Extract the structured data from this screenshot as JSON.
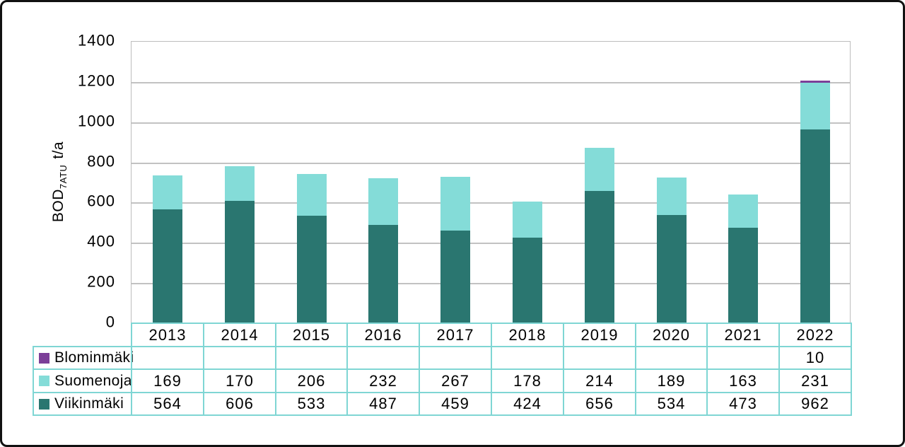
{
  "chart_data": {
    "type": "bar",
    "stacked": true,
    "ylabel_main": "BOD",
    "ylabel_sub": "7ATU",
    "ylabel_unit": "t/a",
    "ylim": [
      0,
      1400
    ],
    "yticks": [
      0,
      200,
      400,
      600,
      800,
      1000,
      1200,
      1400
    ],
    "grid": true,
    "legend_position": "table-left",
    "categories": [
      "2013",
      "2014",
      "2015",
      "2016",
      "2017",
      "2018",
      "2019",
      "2020",
      "2021",
      "2022"
    ],
    "series": [
      {
        "name": "Blominmäki",
        "color": "#7C3F98",
        "values": [
          null,
          null,
          null,
          null,
          null,
          null,
          null,
          null,
          null,
          10
        ]
      },
      {
        "name": "Suomenoja",
        "color": "#84DCD8",
        "values": [
          169,
          170,
          206,
          232,
          267,
          178,
          214,
          189,
          163,
          231
        ]
      },
      {
        "name": "Viikinmäki",
        "color": "#2A7670",
        "values": [
          564,
          606,
          533,
          487,
          459,
          424,
          656,
          534,
          473,
          962
        ]
      }
    ]
  },
  "colors": {
    "grid": "#C2C2C2",
    "plot_border": "#BDBDBD",
    "table_border": "#7FD6D4",
    "frame_border": "#111111",
    "text": "#000000"
  }
}
